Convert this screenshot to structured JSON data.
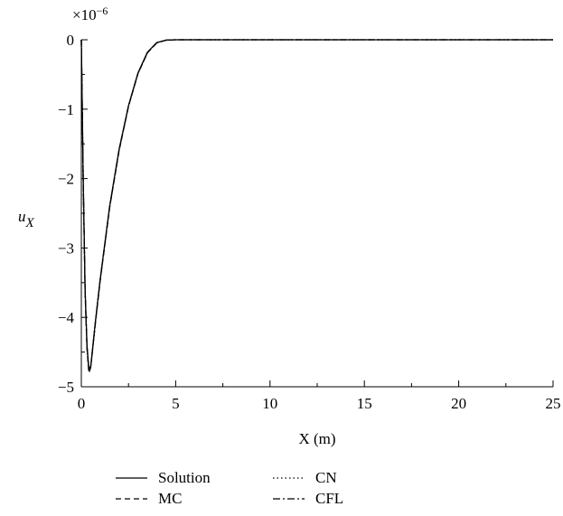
{
  "chart_data": {
    "type": "line",
    "title": "",
    "xlabel": "X (m)",
    "ylabel": "u",
    "ylabel_subscript": "X",
    "y_multiplier": "×10",
    "y_multiplier_exp": "−6",
    "xlim": [
      0,
      25
    ],
    "ylim": [
      -5,
      0
    ],
    "x_ticks": [
      0,
      5,
      10,
      15,
      20,
      25
    ],
    "x_tick_labels": [
      "0",
      "5",
      "10",
      "15",
      "20",
      "25"
    ],
    "y_ticks": [
      0,
      -1,
      -2,
      -3,
      -4,
      -5
    ],
    "y_tick_labels": [
      "0",
      "−1",
      "−2",
      "−3",
      "−4",
      "−5"
    ],
    "grid": false,
    "legend_position": "bottom",
    "series": [
      {
        "name": "Solution",
        "style": "solid",
        "x": [
          0,
          0.1,
          0.2,
          0.3,
          0.4,
          0.5,
          0.75,
          1.0,
          1.5,
          2.0,
          2.5,
          3.0,
          3.5,
          4.0,
          4.5,
          5.0,
          25
        ],
        "y": [
          0,
          -2.0,
          -3.6,
          -4.4,
          -4.75,
          -4.7,
          -4.05,
          -3.45,
          -2.4,
          -1.58,
          -0.95,
          -0.48,
          -0.18,
          -0.04,
          -0.005,
          0,
          0
        ]
      },
      {
        "name": "MC",
        "style": "dashed",
        "x": [
          0,
          0.1,
          0.2,
          0.3,
          0.4,
          0.5,
          0.75,
          1.0,
          1.5,
          2.0,
          2.5,
          3.0,
          3.5,
          4.0,
          4.5,
          5.0,
          25
        ],
        "y": [
          0,
          -2.05,
          -3.65,
          -4.45,
          -4.8,
          -4.72,
          -4.07,
          -3.47,
          -2.42,
          -1.6,
          -0.96,
          -0.49,
          -0.19,
          -0.045,
          -0.006,
          0,
          0
        ]
      },
      {
        "name": "CN",
        "style": "dotted",
        "x": [
          0,
          0.1,
          0.2,
          0.3,
          0.4,
          0.5,
          0.75,
          1.0,
          1.5,
          2.0,
          2.5,
          3.0,
          3.5,
          4.0,
          4.5,
          5.0,
          25
        ],
        "y": [
          0,
          -2.0,
          -3.6,
          -4.42,
          -4.77,
          -4.71,
          -4.06,
          -3.46,
          -2.41,
          -1.59,
          -0.955,
          -0.485,
          -0.185,
          -0.042,
          -0.005,
          0,
          0
        ]
      },
      {
        "name": "CFL",
        "style": "dashdot",
        "x": [
          0,
          0.1,
          0.2,
          0.3,
          0.4,
          0.5,
          0.75,
          1.0,
          1.5,
          2.0,
          2.5,
          3.0,
          3.5,
          4.0,
          4.5,
          5.0,
          25
        ],
        "y": [
          0,
          -2.02,
          -3.62,
          -4.43,
          -4.78,
          -4.71,
          -4.06,
          -3.46,
          -2.41,
          -1.59,
          -0.955,
          -0.485,
          -0.185,
          -0.042,
          -0.005,
          0,
          0
        ]
      }
    ]
  }
}
